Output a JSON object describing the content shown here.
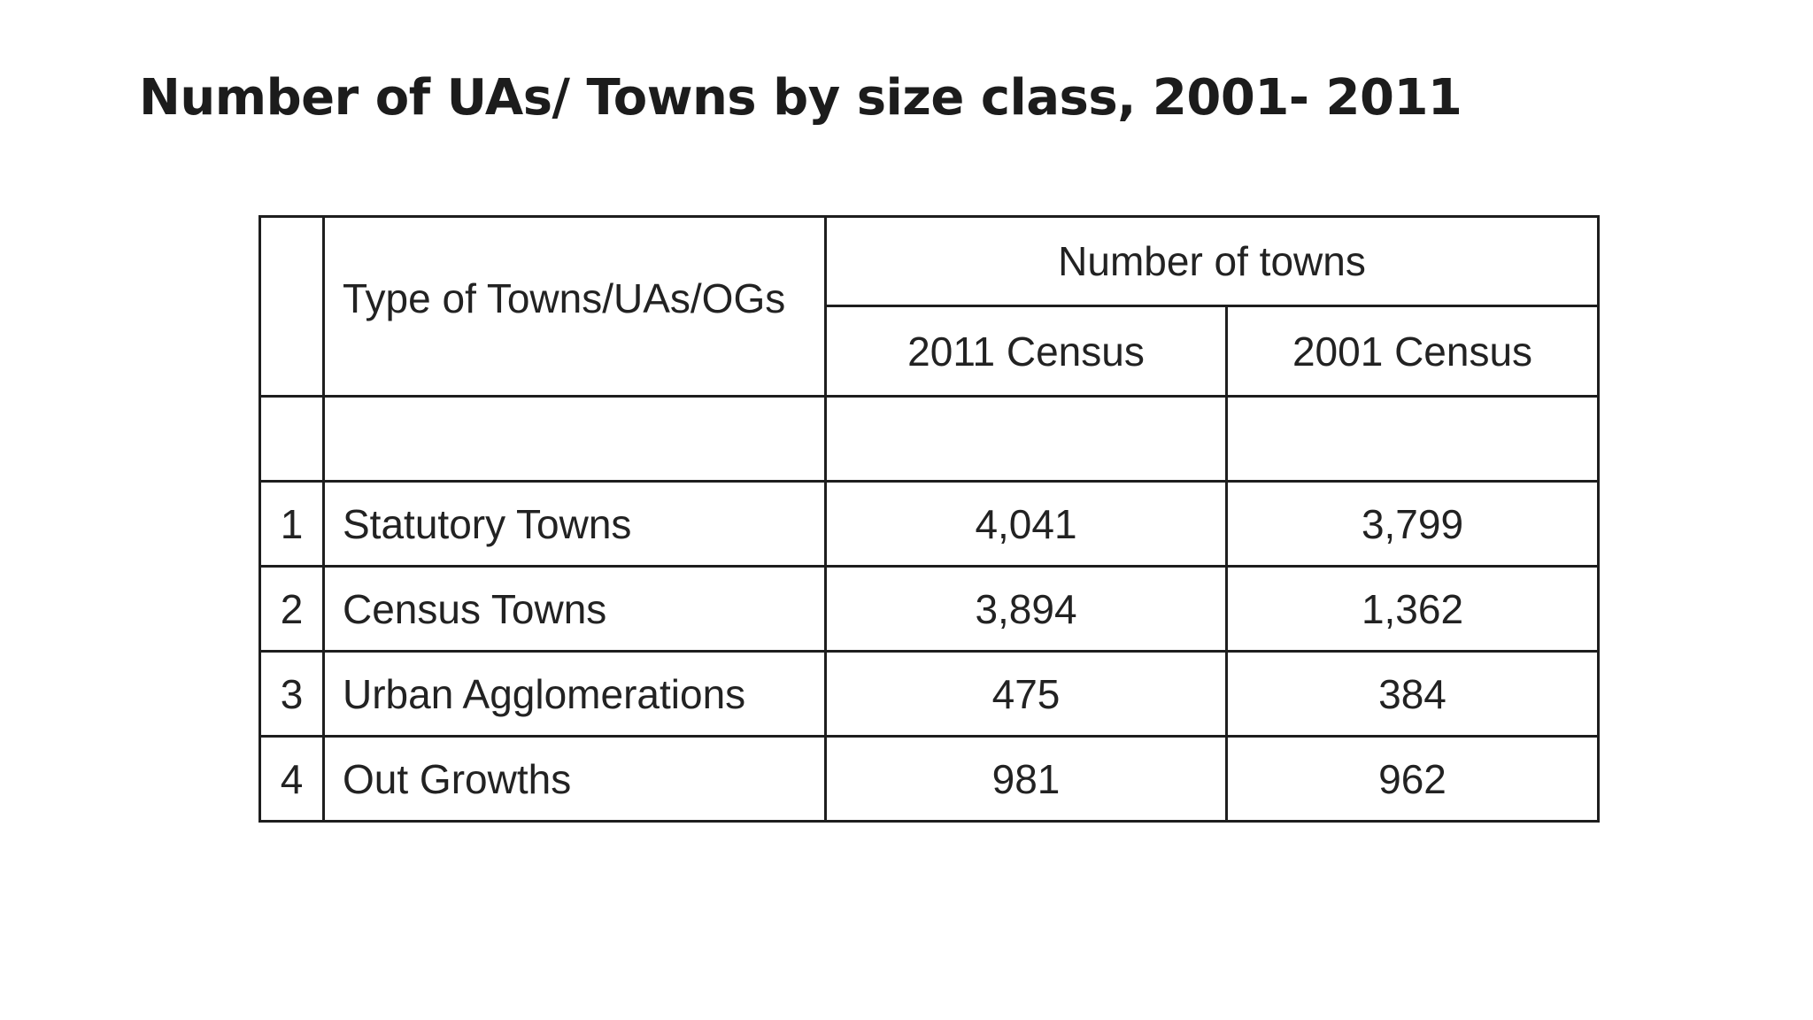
{
  "title": "Number of UAs/ Towns by size class, 2001- 2011",
  "table": {
    "type_header": "Type of Towns/UAs/OGs",
    "group_header": "Number of towns",
    "year_headers": [
      "2011 Census",
      "2001 Census"
    ],
    "rows": [
      {
        "num": "1",
        "type": "Statutory Towns",
        "census_2011": "4,041",
        "census_2001": "3,799"
      },
      {
        "num": "2",
        "type": "Census Towns",
        "census_2011": "3,894",
        "census_2001": "1,362"
      },
      {
        "num": "3",
        "type": "Urban Agglomerations",
        "census_2011": "475",
        "census_2001": "384"
      },
      {
        "num": "4",
        "type": "Out Growths",
        "census_2011": "981",
        "census_2001": "962"
      }
    ]
  }
}
